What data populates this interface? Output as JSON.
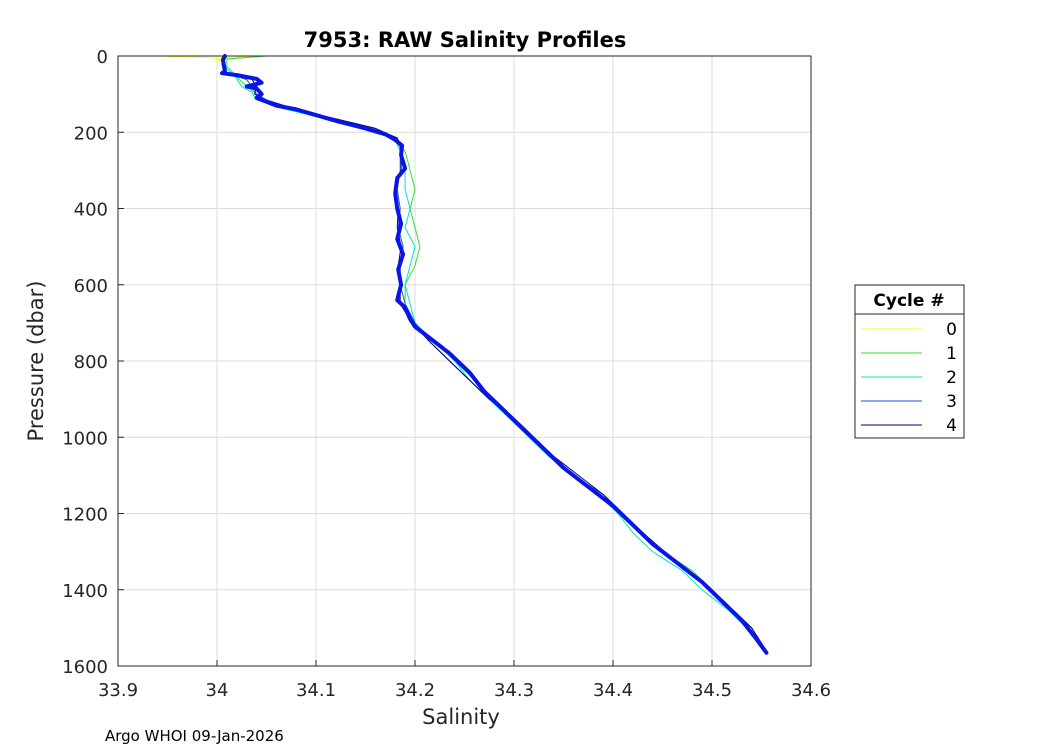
{
  "chart_data": {
    "type": "line",
    "title": "7953: RAW Salinity Profiles",
    "xlabel": "Salinity",
    "ylabel": "Pressure (dbar)",
    "xlim": [
      33.9,
      34.6
    ],
    "ylim": [
      0,
      1600
    ],
    "y_reversed": true,
    "grid": true,
    "xticks": [
      "33.9",
      "34",
      "34.1",
      "34.2",
      "34.3",
      "34.4",
      "34.5",
      "34.6"
    ],
    "yticks": [
      "0",
      "200",
      "400",
      "600",
      "800",
      "1000",
      "1200",
      "1400",
      "1600"
    ],
    "legend": {
      "title": "Cycle #",
      "placement": "outside-right"
    },
    "series": [
      {
        "name": "0",
        "color": "#ffff00",
        "width": 1,
        "points": [
          [
            33.94,
            0
          ],
          [
            33.99,
            4
          ],
          [
            34.0,
            6
          ],
          [
            34.04,
            0
          ],
          [
            34.0,
            10
          ],
          [
            34.01,
            16
          ],
          [
            34.005,
            20
          ]
        ]
      },
      {
        "name": "1",
        "color": "#33dd33",
        "width": 1,
        "points": [
          [
            34.05,
            0
          ],
          [
            34.01,
            8
          ],
          [
            34.01,
            35
          ],
          [
            34.02,
            55
          ],
          [
            34.03,
            80
          ],
          [
            34.04,
            100
          ],
          [
            34.05,
            120
          ],
          [
            34.08,
            145
          ],
          [
            34.12,
            170
          ],
          [
            34.16,
            195
          ],
          [
            34.18,
            220
          ],
          [
            34.19,
            250
          ],
          [
            34.195,
            300
          ],
          [
            34.2,
            350
          ],
          [
            34.195,
            400
          ],
          [
            34.2,
            450
          ],
          [
            34.205,
            500
          ],
          [
            34.2,
            550
          ],
          [
            34.19,
            600
          ],
          [
            34.19,
            650
          ],
          [
            34.2,
            700
          ],
          [
            34.22,
            750
          ],
          [
            34.24,
            800
          ],
          [
            34.26,
            850
          ],
          [
            34.28,
            900
          ],
          [
            34.3,
            950
          ],
          [
            34.32,
            1000
          ],
          [
            34.34,
            1050
          ],
          [
            34.36,
            1100
          ],
          [
            34.39,
            1150
          ],
          [
            34.41,
            1200
          ],
          [
            34.43,
            1250
          ],
          [
            34.45,
            1300
          ],
          [
            34.48,
            1350
          ],
          [
            34.5,
            1400
          ],
          [
            34.52,
            1450
          ],
          [
            34.54,
            1500
          ],
          [
            34.553,
            1560
          ]
        ]
      },
      {
        "name": "2",
        "color": "#00e5c8",
        "width": 1,
        "points": [
          [
            34.01,
            0
          ],
          [
            34.005,
            15
          ],
          [
            34.015,
            40
          ],
          [
            34.02,
            60
          ],
          [
            34.025,
            80
          ],
          [
            34.035,
            95
          ],
          [
            34.04,
            115
          ],
          [
            34.07,
            140
          ],
          [
            34.11,
            165
          ],
          [
            34.15,
            190
          ],
          [
            34.18,
            220
          ],
          [
            34.185,
            250
          ],
          [
            34.19,
            300
          ],
          [
            34.19,
            350
          ],
          [
            34.195,
            400
          ],
          [
            34.19,
            450
          ],
          [
            34.2,
            500
          ],
          [
            34.195,
            550
          ],
          [
            34.19,
            600
          ],
          [
            34.195,
            650
          ],
          [
            34.2,
            700
          ],
          [
            34.22,
            750
          ],
          [
            34.24,
            800
          ],
          [
            34.255,
            850
          ],
          [
            34.275,
            900
          ],
          [
            34.295,
            950
          ],
          [
            34.315,
            1000
          ],
          [
            34.335,
            1050
          ],
          [
            34.36,
            1100
          ],
          [
            34.385,
            1150
          ],
          [
            34.405,
            1200
          ],
          [
            34.42,
            1250
          ],
          [
            34.44,
            1300
          ],
          [
            34.47,
            1350
          ],
          [
            34.49,
            1400
          ],
          [
            34.515,
            1450
          ],
          [
            34.535,
            1500
          ],
          [
            34.553,
            1560
          ]
        ]
      },
      {
        "name": "3",
        "color": "#1a55cc",
        "width": 1,
        "points": [
          [
            34.01,
            0
          ],
          [
            34.005,
            20
          ],
          [
            34.01,
            45
          ],
          [
            34.03,
            62
          ],
          [
            34.035,
            80
          ],
          [
            34.04,
            100
          ],
          [
            34.05,
            115
          ],
          [
            34.08,
            140
          ],
          [
            34.12,
            165
          ],
          [
            34.16,
            190
          ],
          [
            34.18,
            215
          ],
          [
            34.185,
            240
          ],
          [
            34.185,
            300
          ],
          [
            34.182,
            350
          ],
          [
            34.185,
            400
          ],
          [
            34.183,
            450
          ],
          [
            34.188,
            500
          ],
          [
            34.185,
            550
          ],
          [
            34.185,
            600
          ],
          [
            34.19,
            650
          ],
          [
            34.2,
            700
          ],
          [
            34.215,
            750
          ],
          [
            34.235,
            800
          ],
          [
            34.255,
            850
          ],
          [
            34.275,
            900
          ],
          [
            34.3,
            950
          ],
          [
            34.32,
            1000
          ],
          [
            34.34,
            1050
          ],
          [
            34.36,
            1100
          ],
          [
            34.39,
            1150
          ],
          [
            34.41,
            1200
          ],
          [
            34.43,
            1250
          ],
          [
            34.45,
            1300
          ],
          [
            34.475,
            1350
          ],
          [
            34.5,
            1400
          ],
          [
            34.52,
            1450
          ],
          [
            34.54,
            1500
          ],
          [
            34.555,
            1560
          ]
        ]
      },
      {
        "name": "4",
        "color": "#000080",
        "width": 1,
        "points": [
          [
            34.008,
            0
          ],
          [
            34.005,
            20
          ],
          [
            34.008,
            45
          ],
          [
            34.035,
            60
          ],
          [
            34.04,
            80
          ],
          [
            34.038,
            100
          ],
          [
            34.048,
            115
          ],
          [
            34.08,
            140
          ],
          [
            34.12,
            165
          ],
          [
            34.16,
            190
          ],
          [
            34.182,
            215
          ],
          [
            34.186,
            240
          ],
          [
            34.186,
            300
          ],
          [
            34.18,
            350
          ],
          [
            34.183,
            400
          ],
          [
            34.182,
            450
          ],
          [
            34.186,
            500
          ],
          [
            34.183,
            550
          ],
          [
            34.185,
            600
          ],
          [
            34.185,
            650
          ],
          [
            34.197,
            700
          ],
          [
            34.215,
            750
          ],
          [
            34.235,
            800
          ],
          [
            34.255,
            850
          ],
          [
            34.275,
            900
          ],
          [
            34.3,
            950
          ],
          [
            34.32,
            1000
          ],
          [
            34.34,
            1050
          ],
          [
            34.365,
            1100
          ],
          [
            34.39,
            1150
          ],
          [
            34.41,
            1200
          ],
          [
            34.43,
            1250
          ],
          [
            34.452,
            1300
          ],
          [
            34.475,
            1350
          ],
          [
            34.5,
            1400
          ],
          [
            34.52,
            1450
          ],
          [
            34.54,
            1500
          ],
          [
            34.555,
            1560
          ]
        ]
      },
      {
        "name": "",
        "color": "#0a14e6",
        "width": 4,
        "points": [
          [
            34.008,
            0
          ],
          [
            34.006,
            10
          ],
          [
            34.007,
            25
          ],
          [
            34.008,
            40
          ],
          [
            34.005,
            45
          ],
          [
            34.02,
            50
          ],
          [
            34.04,
            60
          ],
          [
            34.045,
            70
          ],
          [
            34.03,
            80
          ],
          [
            34.04,
            85
          ],
          [
            34.045,
            100
          ],
          [
            34.04,
            110
          ],
          [
            34.05,
            120
          ],
          [
            34.06,
            130
          ],
          [
            34.08,
            140
          ],
          [
            34.1,
            155
          ],
          [
            34.12,
            170
          ],
          [
            34.15,
            190
          ],
          [
            34.17,
            205
          ],
          [
            34.18,
            220
          ],
          [
            34.187,
            235
          ],
          [
            34.186,
            260
          ],
          [
            34.19,
            295
          ],
          [
            34.182,
            320
          ],
          [
            34.18,
            360
          ],
          [
            34.182,
            400
          ],
          [
            34.186,
            440
          ],
          [
            34.182,
            480
          ],
          [
            34.188,
            520
          ],
          [
            34.183,
            560
          ],
          [
            34.186,
            600
          ],
          [
            34.182,
            640
          ],
          [
            34.19,
            660
          ],
          [
            34.195,
            690
          ],
          [
            34.2,
            710
          ],
          [
            34.215,
            740
          ],
          [
            34.235,
            780
          ],
          [
            34.255,
            830
          ],
          [
            34.27,
            880
          ],
          [
            34.29,
            930
          ],
          [
            34.31,
            980
          ],
          [
            34.33,
            1030
          ],
          [
            34.35,
            1080
          ],
          [
            34.375,
            1130
          ],
          [
            34.4,
            1180
          ],
          [
            34.42,
            1230
          ],
          [
            34.44,
            1280
          ],
          [
            34.465,
            1330
          ],
          [
            34.49,
            1380
          ],
          [
            34.51,
            1430
          ],
          [
            34.53,
            1480
          ],
          [
            34.545,
            1530
          ],
          [
            34.555,
            1565
          ]
        ]
      }
    ]
  },
  "footer": "Argo WHOI 09-Jan-2026"
}
